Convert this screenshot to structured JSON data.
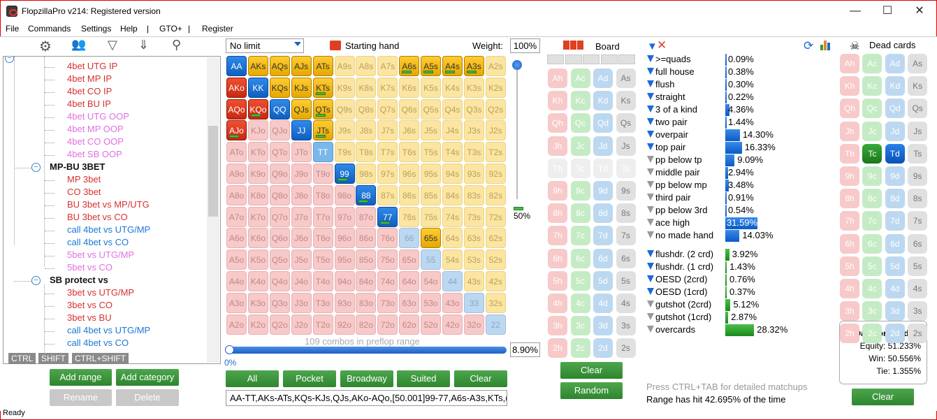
{
  "window": {
    "title": "FlopzillaPro v214: Registered version"
  },
  "menu": [
    "File",
    "Commands",
    "Settings",
    "Help",
    "|",
    "GTO+",
    "|",
    "Register"
  ],
  "tree": {
    "rows": [
      {
        "label": "4bet UTG IP",
        "style": "red",
        "level": 3
      },
      {
        "label": "4bet MP IP",
        "style": "red",
        "level": 3
      },
      {
        "label": "4bet CO IP",
        "style": "red",
        "level": 3
      },
      {
        "label": "4bet BU IP",
        "style": "red",
        "level": 3
      },
      {
        "label": "4bet UTG OOP",
        "style": "pink",
        "level": 3
      },
      {
        "label": "4bet MP OOP",
        "style": "pink",
        "level": 3
      },
      {
        "label": "4bet CO OOP",
        "style": "pink",
        "level": 3
      },
      {
        "label": "4bet SB OOP",
        "style": "pink",
        "level": 3
      },
      {
        "label": "MP-BU 3BET",
        "style": "bold",
        "level": 2,
        "expander": "−"
      },
      {
        "label": "MP 3bet",
        "style": "red",
        "level": 3
      },
      {
        "label": "CO 3bet",
        "style": "red",
        "level": 3
      },
      {
        "label": "BU 3bet vs MP/UTG",
        "style": "red",
        "level": 3
      },
      {
        "label": "BU 3bet vs CO",
        "style": "red",
        "level": 3
      },
      {
        "label": "call 4bet vs UTG/MP",
        "style": "blue",
        "level": 3
      },
      {
        "label": "call 4bet vs CO",
        "style": "blue",
        "level": 3
      },
      {
        "label": "5bet vs UTG/MP",
        "style": "pink",
        "level": 3
      },
      {
        "label": "5bet vs CO",
        "style": "pink",
        "level": 3
      },
      {
        "label": "SB protect vs",
        "style": "bold",
        "level": 2,
        "expander": "−"
      },
      {
        "label": "3bet vs UTG/MP",
        "style": "red",
        "level": 3
      },
      {
        "label": "3bet vs CO",
        "style": "red",
        "level": 3
      },
      {
        "label": "3bet vs BU",
        "style": "red",
        "level": 3
      },
      {
        "label": "call 4bet vs UTG/MP",
        "style": "blue",
        "level": 3
      },
      {
        "label": "call 4bet vs CO",
        "style": "blue",
        "level": 3
      }
    ],
    "modifiers": [
      "CTRL",
      "SHIFT",
      "CTRL+SHIFT"
    ],
    "buttons": {
      "add_range": "Add range",
      "add_category": "Add category",
      "rename": "Rename",
      "delete": "Delete"
    }
  },
  "range": {
    "limit": "No limit",
    "starting_hand_label": "Starting hand",
    "weight_label": "Weight:",
    "weight_value": "100%",
    "slider_pct": "50%",
    "combos_text": "109 combos in preflop range",
    "range_pct": "8.90%",
    "zero_pct": "0%",
    "range_string": "AA-TT,AKs-ATs,KQs-KJs,QJs,AKo-AQo,[50.001]99-77,A6s-A3s,KTs,(",
    "buttons": {
      "all": "All",
      "pocket": "Pocket",
      "broadway": "Broadway",
      "suited": "Suited",
      "clear": "Clear"
    },
    "ranks": [
      "A",
      "K",
      "Q",
      "J",
      "T",
      "9",
      "8",
      "7",
      "6",
      "5",
      "4",
      "3",
      "2"
    ],
    "selected_full": [
      "AA",
      "AKs",
      "AQs",
      "AJs",
      "ATs",
      "AKo",
      "KK",
      "KQs",
      "KJs",
      "AQo",
      "KQo",
      "QQ",
      "QJs",
      "AJo",
      "JJ",
      "65s"
    ],
    "selected_partial": [
      "A6s",
      "A5s",
      "A4s",
      "A3s",
      "KTs",
      "KQo",
      "QTs",
      "AJo",
      "JTs",
      "99",
      "88",
      "77"
    ],
    "selected_outline_only": [
      "TT"
    ]
  },
  "board": {
    "label": "Board",
    "ranks": [
      "A",
      "K",
      "Q",
      "J",
      "T",
      "9",
      "8",
      "7",
      "6",
      "5",
      "4",
      "3",
      "2"
    ],
    "suits": [
      "h",
      "c",
      "d",
      "s"
    ],
    "dead_rank": "T",
    "clear": "Clear",
    "random": "Random"
  },
  "stats": {
    "made": [
      {
        "label": ">=quads",
        "value": "0.09%",
        "pct": 0.09,
        "active": true
      },
      {
        "label": "full house",
        "value": "0.38%",
        "pct": 0.38,
        "active": true
      },
      {
        "label": "flush",
        "value": "0.30%",
        "pct": 0.3,
        "active": true
      },
      {
        "label": "straight",
        "value": "0.22%",
        "pct": 0.22,
        "active": true
      },
      {
        "label": "3 of a kind",
        "value": "4.36%",
        "pct": 4.36,
        "active": true
      },
      {
        "label": "two pair",
        "value": "1.44%",
        "pct": 1.44,
        "active": true
      },
      {
        "label": "overpair",
        "value": "14.30%",
        "pct": 14.3,
        "active": true
      },
      {
        "label": "top pair",
        "value": "16.33%",
        "pct": 16.33,
        "active": true
      },
      {
        "label": "pp below tp",
        "value": "9.09%",
        "pct": 9.09,
        "active": false
      },
      {
        "label": "middle pair",
        "value": "2.94%",
        "pct": 2.94,
        "active": false
      },
      {
        "label": "pp below mp",
        "value": "3.48%",
        "pct": 3.48,
        "active": false
      },
      {
        "label": "third pair",
        "value": "0.91%",
        "pct": 0.91,
        "active": false
      },
      {
        "label": "pp below 3rd",
        "value": "0.54%",
        "pct": 0.54,
        "active": false
      },
      {
        "label": "ace high",
        "value": "31.59%",
        "pct": 31.59,
        "active": false
      },
      {
        "label": "no made hand",
        "value": "14.03%",
        "pct": 14.03,
        "active": false
      }
    ],
    "draws": [
      {
        "label": "flushdr. (2 crd)",
        "value": "3.92%",
        "pct": 3.92,
        "active": true
      },
      {
        "label": "flushdr. (1 crd)",
        "value": "1.43%",
        "pct": 1.43,
        "active": true
      },
      {
        "label": "OESD (2crd)",
        "value": "0.76%",
        "pct": 0.76,
        "active": true
      },
      {
        "label": "OESD (1crd)",
        "value": "0.37%",
        "pct": 0.37,
        "active": true
      },
      {
        "label": "gutshot (2crd)",
        "value": "5.12%",
        "pct": 5.12,
        "active": false
      },
      {
        "label": "gutshot (1crd)",
        "value": "2.87%",
        "pct": 2.87,
        "active": false
      },
      {
        "label": "overcards",
        "value": "28.32%",
        "pct": 28.32,
        "active": false
      }
    ],
    "hint": "Press CTRL+TAB for detailed matchups",
    "hit": "Range has hit 42.695% of the time"
  },
  "dead": {
    "label": "Dead cards",
    "selected": [
      "Tc",
      "Td"
    ],
    "data_title": "Data for hand:",
    "equity": "Equity: 51.233%",
    "win": "Win: 50.556%",
    "tie": "Tie: 1.355%",
    "clear": "Clear"
  },
  "status": "Ready"
}
